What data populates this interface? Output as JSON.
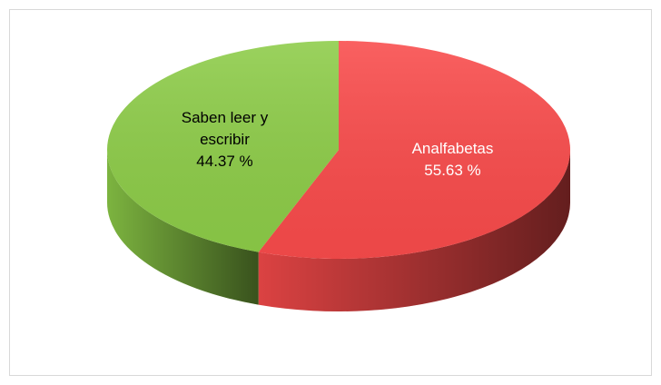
{
  "chart_data": {
    "type": "pie",
    "categories": [
      "Analfabetas",
      "Saben leer y escribir"
    ],
    "values": [
      55.63,
      44.37
    ],
    "value_labels": [
      "55.63 %",
      "44.37 %"
    ],
    "colors": [
      "#f94b4b",
      "#8dcc48"
    ],
    "label_colors": [
      "#ffffff",
      "#000000"
    ]
  }
}
